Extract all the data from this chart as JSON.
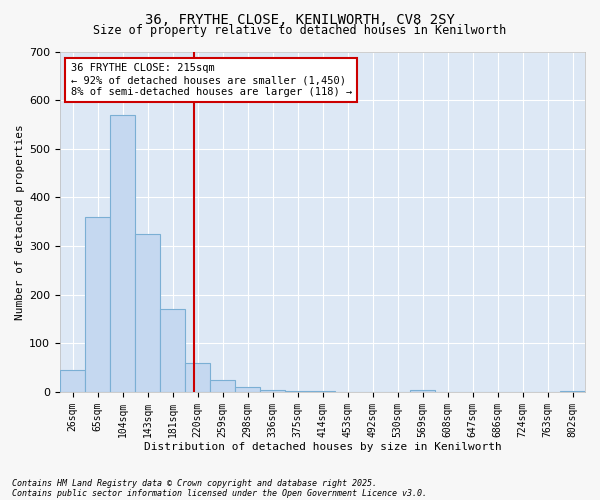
{
  "title_line1": "36, FRYTHE CLOSE, KENILWORTH, CV8 2SY",
  "title_line2": "Size of property relative to detached houses in Kenilworth",
  "xlabel": "Distribution of detached houses by size in Kenilworth",
  "ylabel": "Number of detached properties",
  "bar_labels": [
    "26sqm",
    "65sqm",
    "104sqm",
    "143sqm",
    "181sqm",
    "220sqm",
    "259sqm",
    "298sqm",
    "336sqm",
    "375sqm",
    "414sqm",
    "453sqm",
    "492sqm",
    "530sqm",
    "569sqm",
    "608sqm",
    "647sqm",
    "686sqm",
    "724sqm",
    "763sqm",
    "802sqm"
  ],
  "bar_values": [
    45,
    360,
    570,
    325,
    170,
    60,
    25,
    10,
    5,
    3,
    1,
    0,
    0,
    0,
    5,
    0,
    0,
    0,
    0,
    0,
    3
  ],
  "bar_color": "#c5d8f0",
  "bar_edge_color": "#7bafd4",
  "fig_facecolor": "#f7f7f7",
  "axes_facecolor": "#dde8f5",
  "grid_color": "#ffffff",
  "red_line_label": "215sqm",
  "annotation_text": "36 FRYTHE CLOSE: 215sqm\n← 92% of detached houses are smaller (1,450)\n8% of semi-detached houses are larger (118) →",
  "annotation_box_facecolor": "#ffffff",
  "annotation_box_edgecolor": "#cc0000",
  "ylim": [
    0,
    700
  ],
  "yticks": [
    0,
    100,
    200,
    300,
    400,
    500,
    600,
    700
  ],
  "footer_line1": "Contains HM Land Registry data © Crown copyright and database right 2025.",
  "footer_line2": "Contains public sector information licensed under the Open Government Licence v3.0.",
  "title_fontsize": 10,
  "subtitle_fontsize": 8.5,
  "axis_label_fontsize": 8,
  "tick_fontsize": 7,
  "annotation_fontsize": 7.5,
  "footer_fontsize": 6
}
